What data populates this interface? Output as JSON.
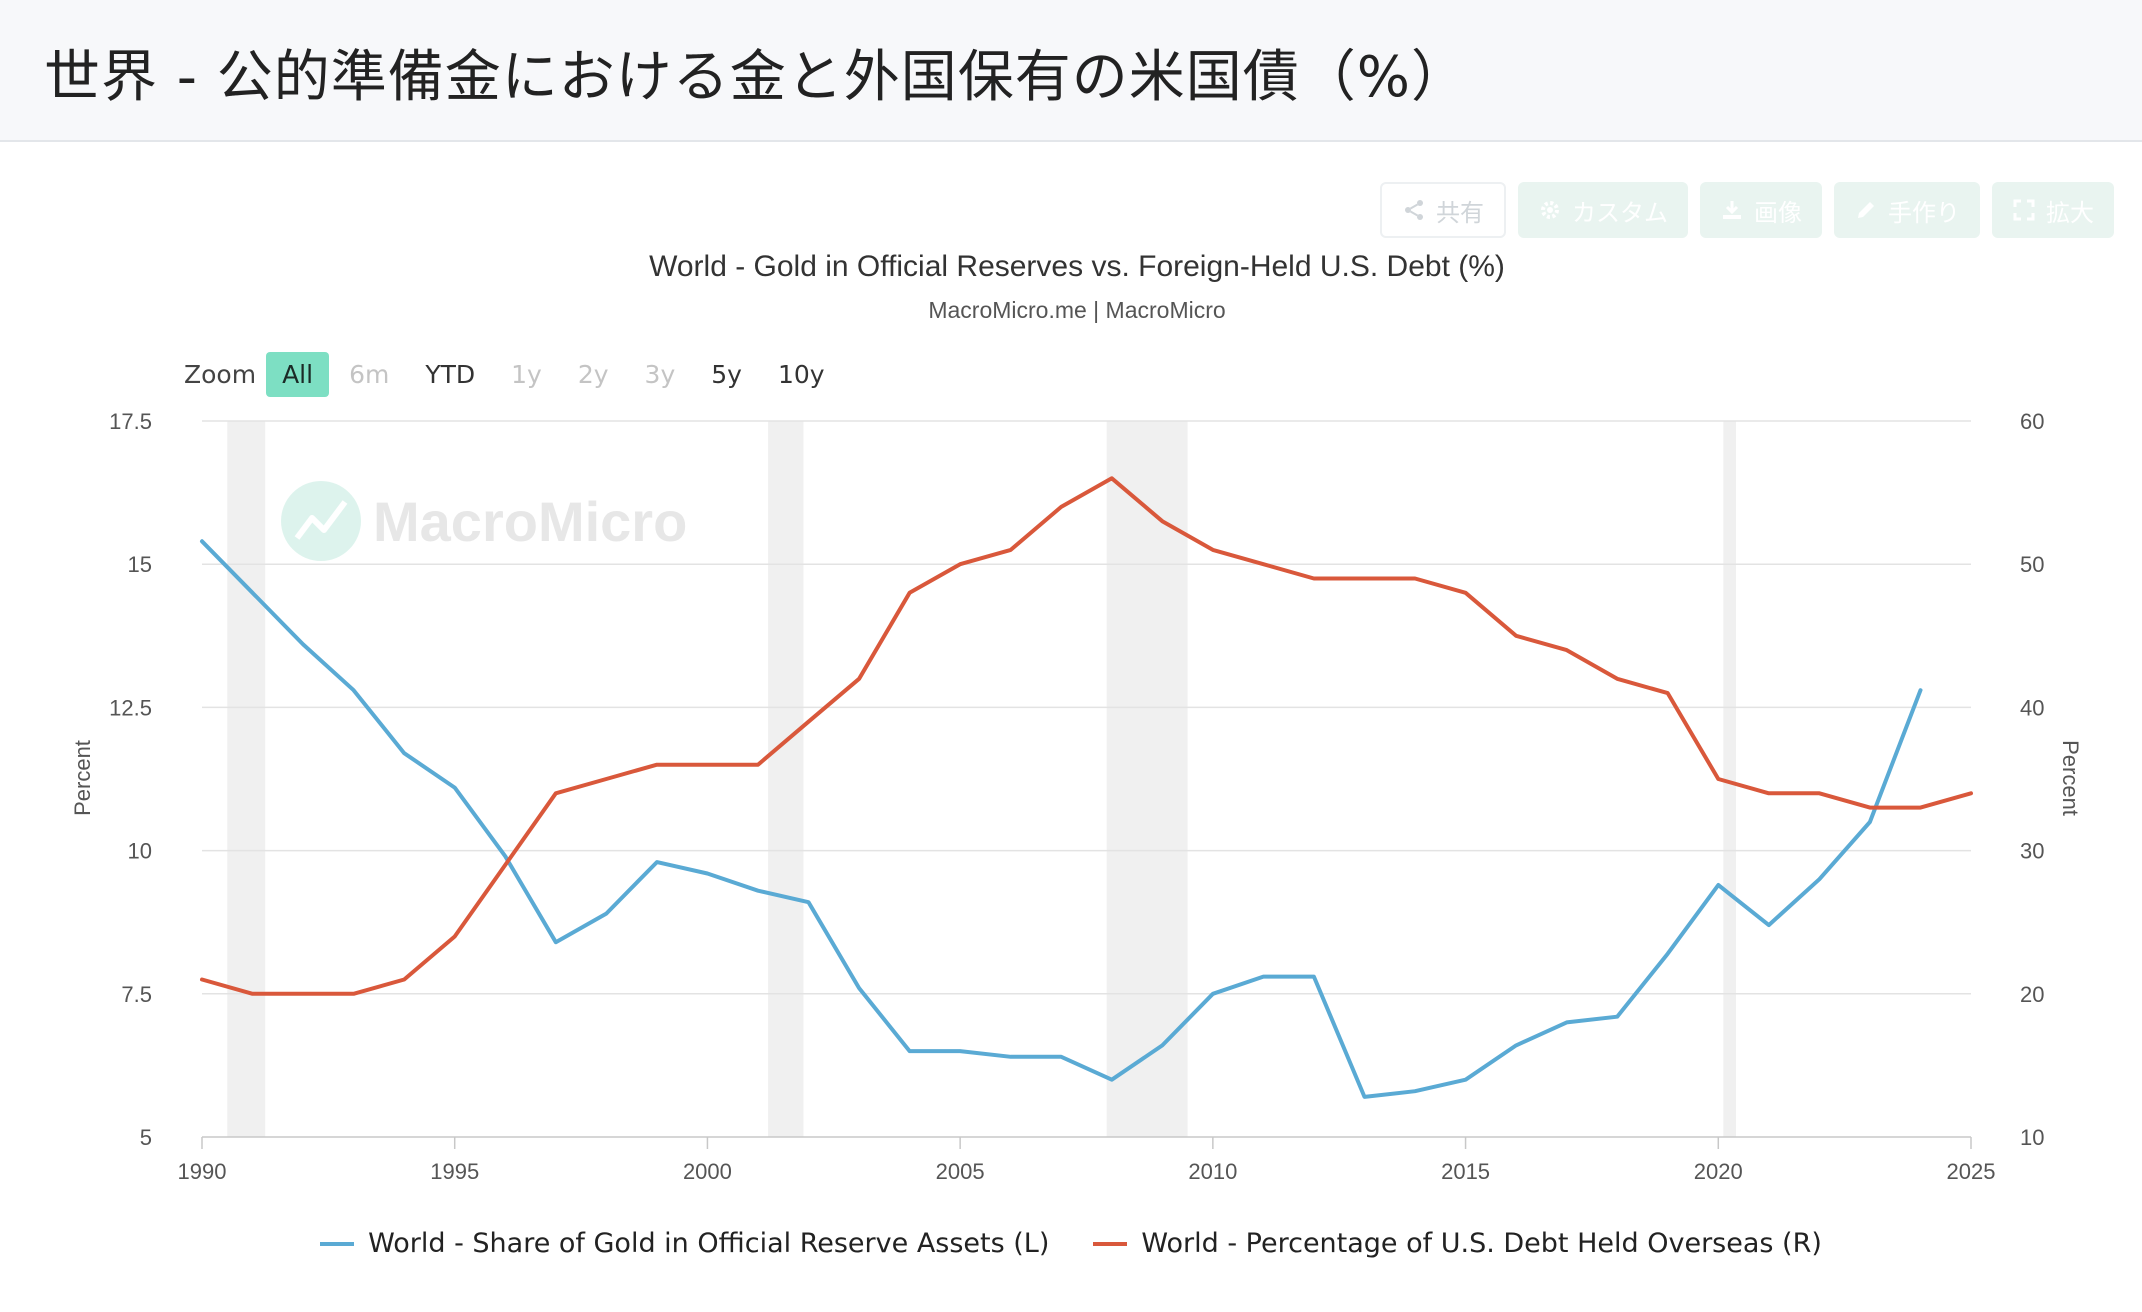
{
  "header": {
    "title": "世界 - 公的準備金における金と外国保有の米国債（%）"
  },
  "toolbar": [
    {
      "label": "共有",
      "icon": "share-icon"
    },
    {
      "label": "カスタム",
      "icon": "gear-icon"
    },
    {
      "label": "画像",
      "icon": "download-icon"
    },
    {
      "label": "手作り",
      "icon": "pencil-icon"
    },
    {
      "label": "拡大",
      "icon": "expand-icon"
    }
  ],
  "zoom": {
    "label": "Zoom",
    "options": [
      {
        "label": "All",
        "state": "active"
      },
      {
        "label": "6m",
        "state": "disabled"
      },
      {
        "label": "YTD",
        "state": "enabled"
      },
      {
        "label": "1y",
        "state": "disabled"
      },
      {
        "label": "2y",
        "state": "disabled"
      },
      {
        "label": "3y",
        "state": "disabled"
      },
      {
        "label": "5y",
        "state": "enabled"
      },
      {
        "label": "10y",
        "state": "enabled"
      }
    ]
  },
  "watermark": "MacroMicro",
  "chart_data": {
    "type": "line",
    "title": "World - Gold in Official Reserves vs. Foreign-Held U.S. Debt (%)",
    "subtitle": "MacroMicro.me | MacroMicro",
    "xlabel": "",
    "ylabel_left": "Percent",
    "ylabel_right": "Percent",
    "xlim": [
      1990,
      2025
    ],
    "x_ticks": [
      1990,
      1995,
      2000,
      2005,
      2010,
      2015,
      2020,
      2025
    ],
    "ylim_left": [
      5,
      17.5
    ],
    "y_ticks_left": [
      "5",
      "7.5",
      "10",
      "12.5",
      "15",
      "17.5"
    ],
    "ylim_right": [
      10,
      60
    ],
    "y_ticks_right": [
      "10",
      "20",
      "30",
      "40",
      "50",
      "60"
    ],
    "grid": true,
    "legend_position": "bottom-center",
    "recession_bands": [
      [
        1990.5,
        1991.25
      ],
      [
        2001.2,
        2001.9
      ],
      [
        2007.9,
        2009.5
      ],
      [
        2020.1,
        2020.35
      ]
    ],
    "series": [
      {
        "name": "World - Share of Gold in Official Reserve Assets (L)",
        "axis": "left",
        "color": "#5aaad4",
        "x": [
          1990,
          1991,
          1992,
          1993,
          1994,
          1995,
          1996,
          1997,
          1998,
          1999,
          2000,
          2001,
          2002,
          2003,
          2004,
          2005,
          2006,
          2007,
          2008,
          2009,
          2010,
          2011,
          2012,
          2013,
          2014,
          2015,
          2016,
          2017,
          2018,
          2019,
          2020,
          2021,
          2022,
          2023,
          2024
        ],
        "values": [
          15.4,
          14.5,
          13.6,
          12.8,
          11.7,
          11.1,
          9.9,
          8.4,
          8.9,
          9.8,
          9.6,
          9.3,
          9.1,
          7.6,
          6.5,
          6.5,
          6.4,
          6.4,
          6.0,
          6.6,
          7.5,
          7.8,
          7.8,
          5.7,
          5.8,
          6.0,
          6.6,
          7.0,
          7.1,
          8.2,
          9.4,
          8.7,
          9.5,
          10.5,
          12.8
        ]
      },
      {
        "name": "World - Percentage of U.S. Debt Held Overseas (R)",
        "axis": "right",
        "color": "#d9583b",
        "x": [
          1990,
          1991,
          1992,
          1993,
          1994,
          1995,
          1996,
          1997,
          1998,
          1999,
          2000,
          2001,
          2002,
          2003,
          2004,
          2005,
          2006,
          2007,
          2008,
          2009,
          2010,
          2011,
          2012,
          2013,
          2014,
          2015,
          2016,
          2017,
          2018,
          2019,
          2020,
          2021,
          2022,
          2023,
          2024,
          2025
        ],
        "values": [
          21,
          20,
          20,
          20,
          21,
          24,
          29,
          34,
          35,
          36,
          36,
          36,
          39,
          42,
          48,
          50,
          51,
          54,
          56,
          53,
          51,
          50,
          49,
          49,
          49,
          48,
          45,
          44,
          42,
          41,
          35,
          34,
          34,
          33,
          33,
          34
        ]
      }
    ]
  }
}
